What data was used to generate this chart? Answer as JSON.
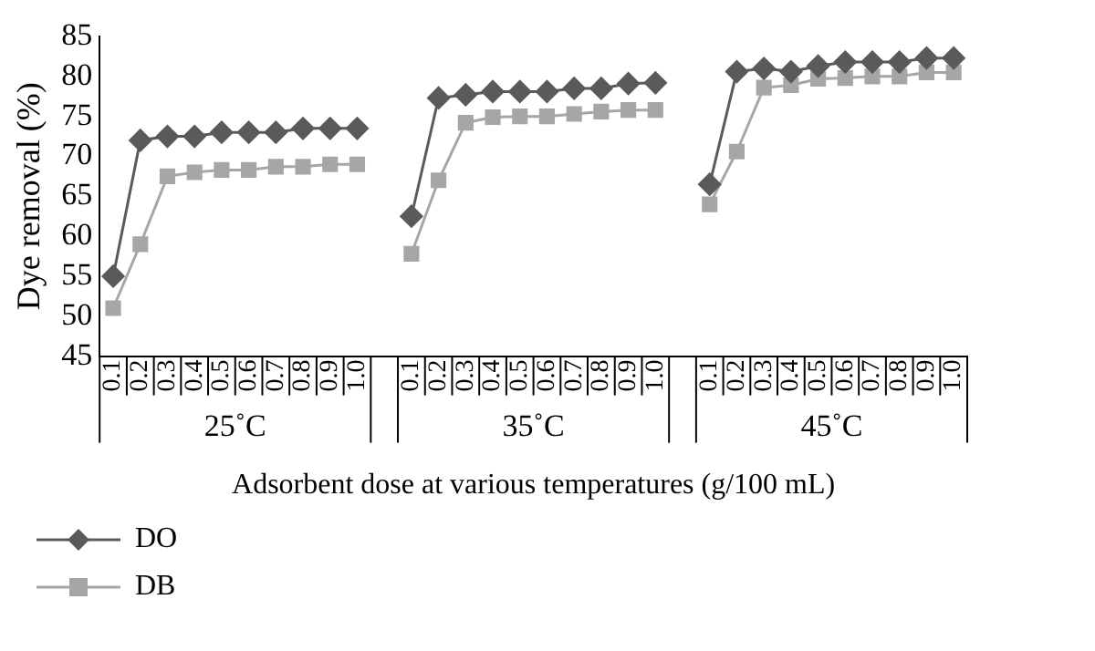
{
  "chart_data": {
    "type": "line",
    "xlabel": "Adsorbent dose at various temperatures (g/100 mL)",
    "ylabel": "Dye removal (%)",
    "categories": [
      "0.1",
      "0.2",
      "0.3",
      "0.4",
      "0.5",
      "0.6",
      "0.7",
      "0.8",
      "0.9",
      "1.0",
      null,
      "0.1",
      "0.2",
      "0.3",
      "0.4",
      "0.5",
      "0.6",
      "0.7",
      "0.8",
      "0.9",
      "1.0",
      null,
      "0.1",
      "0.2",
      "0.3",
      "0.4",
      "0.5",
      "0.6",
      "0.7",
      "0.8",
      "0.9",
      "1.0"
    ],
    "series": [
      {
        "name": "DO",
        "color": "#5a5a5a",
        "marker": "diamond",
        "values": [
          55,
          72,
          72.5,
          72.5,
          73,
          73,
          73,
          73.5,
          73.5,
          73.5,
          null,
          62.5,
          77.3,
          77.7,
          78.1,
          78.1,
          78.1,
          78.5,
          78.5,
          79.1,
          79.2,
          null,
          66.5,
          80.6,
          81,
          80.6,
          81.3,
          81.8,
          81.8,
          81.8,
          82.3,
          82.3
        ]
      },
      {
        "name": "DB",
        "color": "#a6a6a6",
        "marker": "square",
        "values": [
          51,
          59,
          67.5,
          68,
          68.3,
          68.3,
          68.7,
          68.7,
          69,
          69,
          null,
          57.8,
          67,
          74.2,
          74.9,
          75,
          75,
          75.3,
          75.6,
          75.8,
          75.8,
          null,
          64,
          70.6,
          78.6,
          78.9,
          79.7,
          79.8,
          80,
          80,
          80.5,
          80.5
        ]
      }
    ],
    "annotations": [
      "25˚C",
      "35˚C",
      "45˚C"
    ],
    "ylim": [
      45,
      85
    ],
    "yticks": [
      45,
      50,
      55,
      60,
      65,
      70,
      75,
      80,
      85
    ],
    "legend": "bottom left"
  }
}
